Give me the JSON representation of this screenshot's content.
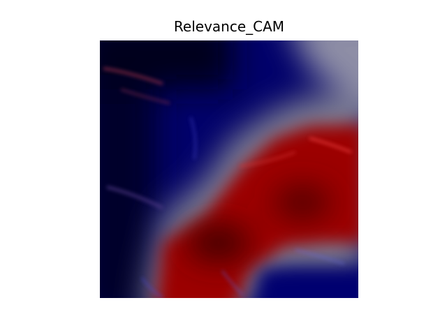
{
  "figure": {
    "title": "Relevance_CAM"
  },
  "colors": {
    "background": "#ffffff",
    "cold": "#00006e",
    "neutral": "#8c8c9c",
    "hot": "#a00000",
    "darkest": "#02021f"
  }
}
